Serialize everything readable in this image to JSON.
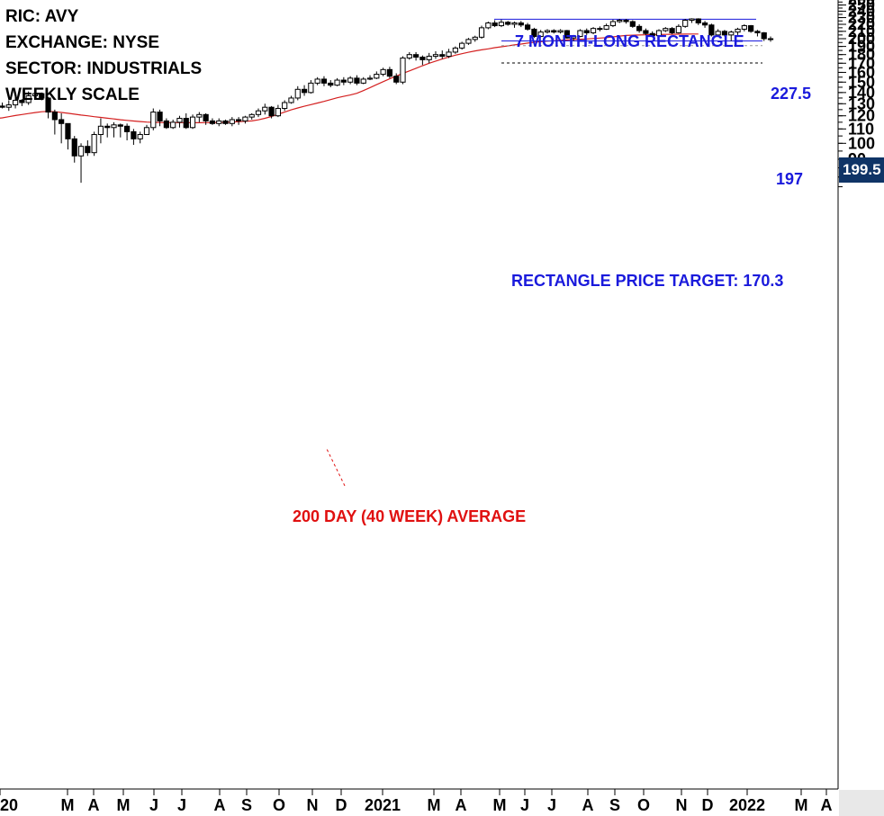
{
  "header": {
    "ric": "RIC: AVY",
    "exchange": "EXCHANGE: NYSE",
    "sector": "SECTOR: INDUSTRIALS",
    "scale": "WEEKLY SCALE"
  },
  "annotations": {
    "pattern_title": "7 MONTH-LONG RECTANGLE",
    "resistance_label": "227.5",
    "support_label": "197",
    "target_label": "RECTANGLE PRICE TARGET: 170.3",
    "ma_label": "200 DAY (40 WEEK) AVERAGE",
    "last_price": "199.5"
  },
  "colors": {
    "blue_annotation": "#1a1adc",
    "red_annotation": "#e01010",
    "moving_average": "#d42020",
    "badge": "#0f3466"
  },
  "chart_data": {
    "type": "candlestick",
    "y_scale": "log",
    "ylim": [
      70,
      265
    ],
    "y_ticks": [
      80,
      90,
      100,
      110,
      120,
      130,
      140,
      150,
      160,
      170,
      180,
      190,
      200,
      210,
      220,
      230,
      240,
      250,
      260
    ],
    "x_ticks": [
      "2020",
      "M",
      "A",
      "M",
      "J",
      "J",
      "A",
      "S",
      "O",
      "N",
      "D",
      "2021",
      "M",
      "A",
      "M",
      "J",
      "J",
      "A",
      "S",
      "O",
      "N",
      "D",
      "2022",
      "M",
      "A"
    ],
    "resistance": 227.5,
    "support": 197,
    "price_target": 170.3,
    "last_price": 199.5,
    "candles": [
      [
        128,
        127,
        131,
        126
      ],
      [
        127,
        129,
        133,
        124
      ],
      [
        129,
        133,
        136,
        126
      ],
      [
        133,
        131,
        134,
        128
      ],
      [
        131,
        137,
        141,
        129
      ],
      [
        137,
        139,
        142,
        135
      ],
      [
        139,
        135,
        140,
        133
      ],
      [
        135,
        123,
        136,
        118
      ],
      [
        123,
        117,
        125,
        106
      ],
      [
        117,
        114,
        122,
        100
      ],
      [
        114,
        103,
        114,
        96
      ],
      [
        103,
        92,
        105,
        88
      ],
      [
        92,
        98,
        100,
        77
      ],
      [
        98,
        94,
        102,
        92
      ],
      [
        94,
        106,
        108,
        92
      ],
      [
        106,
        112,
        118,
        100
      ],
      [
        112,
        111,
        114,
        104
      ],
      [
        111,
        113,
        115,
        104
      ],
      [
        113,
        112,
        114,
        104
      ],
      [
        112,
        108,
        114,
        102
      ],
      [
        108,
        103,
        110,
        99
      ],
      [
        103,
        106,
        108,
        100
      ],
      [
        106,
        111,
        113,
        107
      ],
      [
        111,
        123,
        126,
        109
      ],
      [
        123,
        116,
        125,
        112
      ],
      [
        116,
        111,
        118,
        110
      ],
      [
        111,
        115,
        117,
        110
      ],
      [
        115,
        118,
        120,
        111
      ],
      [
        118,
        111,
        122,
        110
      ],
      [
        111,
        119,
        121,
        110
      ],
      [
        119,
        121,
        123,
        115
      ],
      [
        121,
        116,
        122,
        113
      ],
      [
        116,
        114,
        118,
        113
      ],
      [
        114,
        116,
        118,
        112
      ],
      [
        116,
        114,
        117,
        113
      ],
      [
        114,
        117,
        119,
        112
      ],
      [
        117,
        116,
        119,
        113
      ],
      [
        116,
        119,
        120,
        114
      ],
      [
        119,
        121,
        122,
        117
      ],
      [
        121,
        124,
        126,
        119
      ],
      [
        124,
        127,
        130,
        121
      ],
      [
        127,
        120,
        128,
        118
      ],
      [
        120,
        126,
        129,
        119
      ],
      [
        126,
        131,
        133,
        124
      ],
      [
        131,
        135,
        137,
        130
      ],
      [
        135,
        143,
        146,
        133
      ],
      [
        143,
        140,
        147,
        137
      ],
      [
        140,
        149,
        152,
        139
      ],
      [
        149,
        153,
        155,
        147
      ],
      [
        153,
        149,
        156,
        146
      ],
      [
        149,
        147,
        152,
        145
      ],
      [
        147,
        152,
        154,
        146
      ],
      [
        152,
        150,
        155,
        147
      ],
      [
        150,
        154,
        156,
        148
      ],
      [
        154,
        149,
        157,
        147
      ],
      [
        149,
        153,
        155,
        148
      ],
      [
        153,
        154,
        157,
        152
      ],
      [
        154,
        158,
        161,
        153
      ],
      [
        158,
        163,
        165,
        156
      ],
      [
        163,
        156,
        166,
        154
      ],
      [
        156,
        150,
        159,
        148
      ],
      [
        150,
        176,
        178,
        148
      ],
      [
        176,
        180,
        183,
        174
      ],
      [
        180,
        177,
        183,
        173
      ],
      [
        177,
        174,
        179,
        168
      ],
      [
        174,
        178,
        182,
        170
      ],
      [
        178,
        180,
        184,
        175
      ],
      [
        180,
        178,
        185,
        175
      ],
      [
        178,
        183,
        187,
        176
      ],
      [
        183,
        188,
        190,
        181
      ],
      [
        188,
        194,
        196,
        186
      ],
      [
        194,
        199,
        201,
        192
      ],
      [
        199,
        202,
        204,
        196
      ],
      [
        202,
        215,
        218,
        200
      ],
      [
        215,
        222,
        224,
        213
      ],
      [
        222,
        218,
        226,
        216
      ],
      [
        218,
        223,
        227,
        216
      ],
      [
        223,
        220,
        225,
        218
      ],
      [
        220,
        222,
        224,
        215
      ],
      [
        222,
        219,
        225,
        216
      ],
      [
        219,
        213,
        222,
        211
      ],
      [
        213,
        203,
        215,
        201
      ],
      [
        203,
        209,
        212,
        202
      ],
      [
        209,
        211,
        213,
        207
      ],
      [
        211,
        209,
        213,
        207
      ],
      [
        209,
        211,
        213,
        207
      ],
      [
        211,
        201,
        212,
        200
      ],
      [
        201,
        203,
        205,
        197
      ],
      [
        203,
        211,
        213,
        202
      ],
      [
        211,
        208,
        214,
        205
      ],
      [
        208,
        214,
        216,
        206
      ],
      [
        214,
        213,
        217,
        210
      ],
      [
        213,
        218,
        221,
        212
      ],
      [
        218,
        224,
        227,
        216
      ],
      [
        224,
        226,
        228,
        222
      ],
      [
        226,
        224,
        228,
        221
      ],
      [
        224,
        217,
        226,
        215
      ],
      [
        217,
        211,
        220,
        208
      ],
      [
        211,
        207,
        214,
        205
      ],
      [
        207,
        204,
        210,
        202
      ],
      [
        204,
        211,
        213,
        203
      ],
      [
        211,
        214,
        216,
        209
      ],
      [
        214,
        208,
        216,
        206
      ],
      [
        208,
        217,
        220,
        207
      ],
      [
        217,
        226,
        228,
        215
      ],
      [
        226,
        228,
        229,
        222
      ],
      [
        228,
        222,
        229,
        219
      ],
      [
        222,
        219,
        225,
        215
      ],
      [
        219,
        205,
        221,
        203
      ],
      [
        205,
        210,
        213,
        204
      ],
      [
        210,
        205,
        212,
        203
      ],
      [
        205,
        209,
        211,
        197
      ],
      [
        209,
        213,
        215,
        205
      ],
      [
        213,
        218,
        220,
        210
      ],
      [
        218,
        210,
        219,
        208
      ],
      [
        210,
        208,
        212,
        203
      ],
      [
        208,
        200,
        209,
        197
      ],
      [
        200,
        199.5,
        203,
        196
      ]
    ],
    "moving_average": [
      118.4,
      119.3,
      120.2,
      121.0,
      121.8,
      122.6,
      123.3,
      123.6,
      123.3,
      122.7,
      122.0,
      121.3,
      120.6,
      120.0,
      119.3,
      118.7,
      118.1,
      117.5,
      116.9,
      116.4,
      115.9,
      115.5,
      115.1,
      114.9,
      114.8,
      114.7,
      114.7,
      114.7,
      114.7,
      114.6,
      114.6,
      114.7,
      114.7,
      114.8,
      114.9,
      115.1,
      115.4,
      115.7,
      116.0,
      116.8,
      118.0,
      119.5,
      121.2,
      123.0,
      124.8,
      126.4,
      127.8,
      129.2,
      130.6,
      132.0,
      133.6,
      135.2,
      136.5,
      137.7,
      139.3,
      141.8,
      144.6,
      147.5,
      150.4,
      153.3,
      156.1,
      158.9,
      161.6,
      164.4,
      167.3,
      170.0,
      172.4,
      174.8,
      177.1,
      179.3,
      181.1,
      182.8,
      184.4,
      185.8,
      187.0,
      188.4,
      189.6,
      190.7,
      191.9,
      193.0,
      194.2,
      195.3,
      196.1,
      196.8,
      197.3,
      197.9,
      198.4,
      198.9,
      199.3,
      199.7,
      200.2,
      200.8,
      201.5,
      202.4,
      203.5,
      204.3,
      204.7,
      205.0,
      205.2,
      205.4,
      205.6,
      205.8,
      206.0,
      206.1,
      206.2,
      206.3,
      206.3
    ]
  }
}
